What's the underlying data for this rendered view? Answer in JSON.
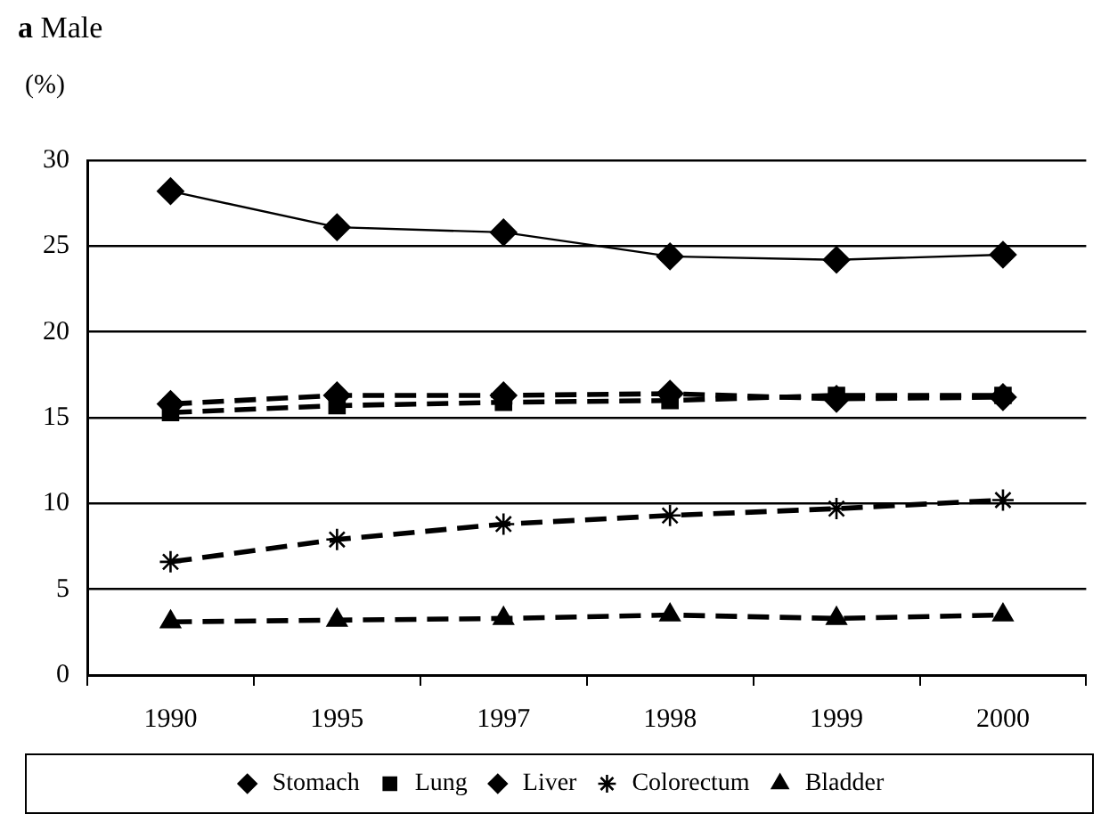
{
  "chart_data": {
    "type": "line",
    "title": "a Male",
    "ylabel": "(%)",
    "categories": [
      "1990",
      "1995",
      "1997",
      "1998",
      "1999",
      "2000"
    ],
    "ylim": [
      0,
      30
    ],
    "yticks": [
      0,
      5,
      10,
      15,
      20,
      25,
      30
    ],
    "grid": "y",
    "legend": "bottom",
    "series": [
      {
        "name": "Stomach",
        "color": "#000000",
        "marker": "diamond",
        "line_style": "solid",
        "values": [
          28.2,
          26.1,
          25.8,
          24.4,
          24.2,
          24.5
        ]
      },
      {
        "name": "Lung",
        "color": "#000000",
        "marker": "square",
        "line_style": "dashed",
        "values": [
          15.3,
          15.7,
          15.9,
          16.0,
          16.3,
          16.3
        ]
      },
      {
        "name": "Liver",
        "color": "#000000",
        "marker": "diamond",
        "line_style": "dashed",
        "values": [
          15.8,
          16.3,
          16.3,
          16.4,
          16.1,
          16.2
        ]
      },
      {
        "name": "Colorectum",
        "color": "#000000",
        "marker": "cross",
        "line_style": "dashed",
        "values": [
          6.6,
          7.9,
          8.8,
          9.3,
          9.7,
          10.2
        ]
      },
      {
        "name": "Bladder",
        "color": "#000000",
        "marker": "triangle",
        "line_style": "dashed",
        "values": [
          3.1,
          3.2,
          3.3,
          3.5,
          3.3,
          3.5
        ]
      }
    ]
  }
}
